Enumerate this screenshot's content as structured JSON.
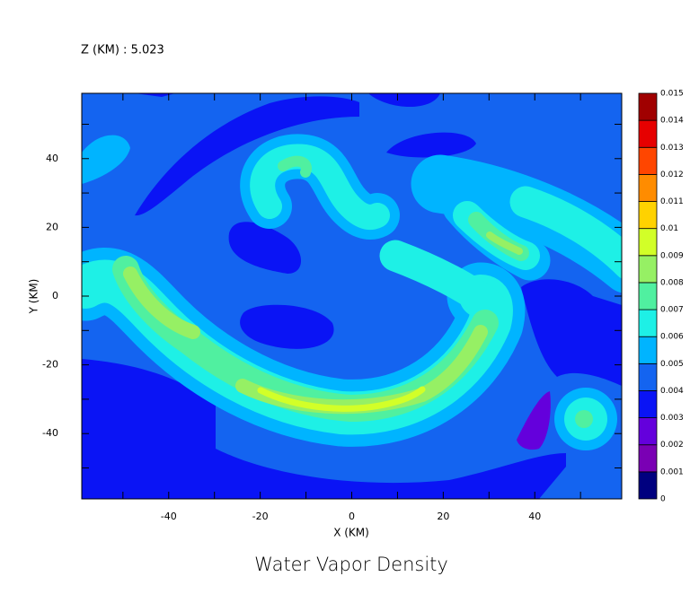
{
  "chart_data": {
    "type": "contour",
    "title": "Water Vapor Density",
    "subtitle": "Z (KM) : 5.023",
    "x_label": "X (KM)",
    "y_label": "Y (KM)",
    "xlim": [
      -59,
      59
    ],
    "ylim": [
      -59,
      59
    ],
    "xticks": [
      -40,
      -20,
      0,
      20,
      40
    ],
    "yticks": [
      -40,
      -20,
      0,
      20,
      40
    ],
    "xminorticks": [
      -50,
      -30,
      -10,
      10,
      30,
      50
    ],
    "yminorticks": [
      -50,
      -30,
      -10,
      10,
      30,
      50
    ],
    "levels": [
      0,
      0.001,
      0.002,
      0.003,
      0.004,
      0.005,
      0.006,
      0.007,
      0.008,
      0.009,
      0.01,
      0.011,
      0.012,
      0.013,
      0.014,
      0.015
    ],
    "colors": [
      "#00007f",
      "#7a00b4",
      "#6400dc",
      "#0a14f5",
      "#1464f0",
      "#00b4ff",
      "#1ef0e6",
      "#50f0a0",
      "#96f064",
      "#d2ff28",
      "#ffd200",
      "#ff8c00",
      "#ff4600",
      "#e60000",
      "#a00000"
    ]
  }
}
